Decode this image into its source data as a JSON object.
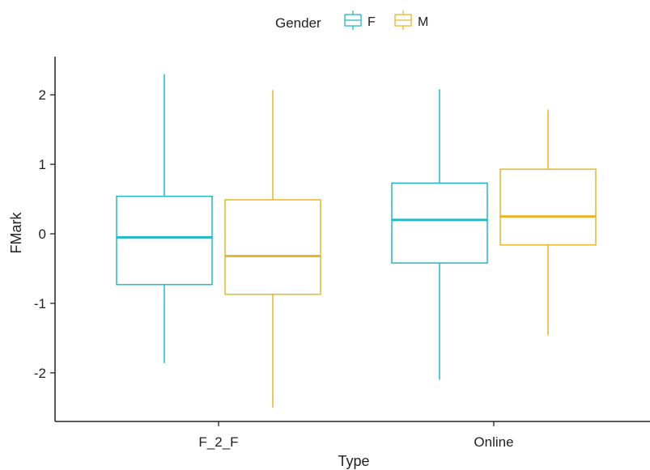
{
  "chart_data": {
    "type": "box",
    "xlabel": "Type",
    "ylabel": "FMark",
    "categories": [
      "F_2_F",
      "Online"
    ],
    "ylim": [
      -2.7,
      2.55
    ],
    "yticks": [
      2,
      1,
      0,
      -1,
      -2
    ],
    "ytick_labels": [
      "2",
      "1",
      "0",
      "-1",
      "-2"
    ],
    "grid": false,
    "legend": {
      "title": "Gender",
      "position": "top",
      "items": [
        "F",
        "M"
      ]
    },
    "series": [
      {
        "name": "F",
        "color": "#22b8c7",
        "boxes": [
          {
            "min": -1.86,
            "q1": -0.73,
            "median": -0.05,
            "q3": 0.54,
            "max": 2.3
          },
          {
            "min": -2.1,
            "q1": -0.42,
            "median": 0.2,
            "q3": 0.73,
            "max": 2.08
          }
        ]
      },
      {
        "name": "M",
        "color": "#e6b72a",
        "boxes": [
          {
            "min": -2.5,
            "q1": -0.87,
            "median": -0.32,
            "q3": 0.49,
            "max": 2.07
          },
          {
            "min": -1.46,
            "q1": -0.16,
            "median": 0.25,
            "q3": 0.93,
            "max": 1.79
          }
        ]
      }
    ]
  }
}
